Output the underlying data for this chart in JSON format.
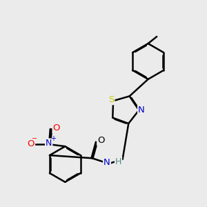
{
  "bg_color": "#ebebeb",
  "bond_color": "#000000",
  "bond_width": 1.8,
  "atom_colors": {
    "S": "#cccc00",
    "N": "#0000cc",
    "O": "#ff0000",
    "H": "#558888",
    "C": "#000000"
  }
}
